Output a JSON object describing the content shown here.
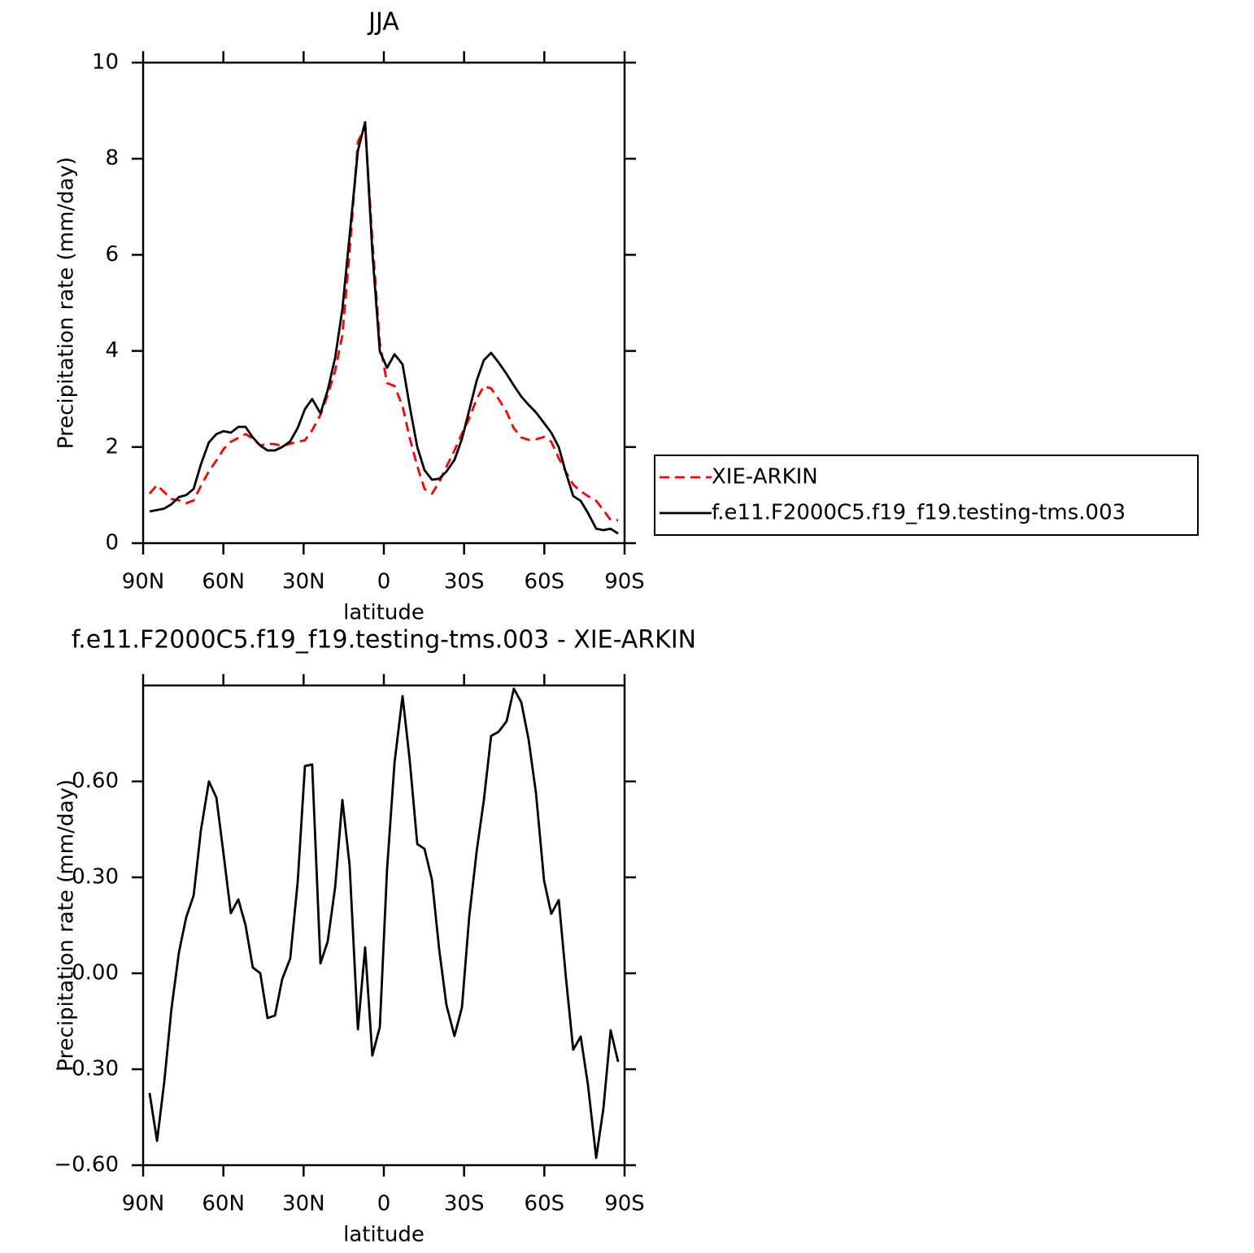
{
  "chart_data": [
    {
      "type": "line",
      "title": "JJA",
      "xlabel": "latitude",
      "ylabel": "Precipitation rate (mm/day)",
      "x": [
        87.6,
        84.8,
        82.1,
        79.4,
        76.6,
        73.9,
        71.1,
        68.4,
        65.4,
        62.6,
        59.9,
        57.2,
        54.4,
        51.7,
        49.0,
        46.2,
        43.5,
        40.7,
        38.0,
        35.0,
        32.2,
        29.5,
        26.8,
        23.7,
        21.0,
        18.2,
        15.5,
        12.8,
        9.7,
        7.0,
        4.3,
        1.5,
        -1.2,
        -4.0,
        -7.0,
        -9.7,
        -12.5,
        -15.2,
        -18.0,
        -20.7,
        -23.4,
        -26.4,
        -29.2,
        -31.9,
        -34.7,
        -37.4,
        -40.1,
        -42.9,
        -45.9,
        -48.6,
        -51.4,
        -54.1,
        -56.9,
        -59.9,
        -62.6,
        -65.4,
        -68.1,
        -70.8,
        -73.6,
        -76.3,
        -79.4,
        -82.1,
        -84.8,
        -87.6
      ],
      "series": [
        {
          "name": "XIE-ARKIN",
          "color": "#ff0000",
          "dash": "dashed",
          "values": [
            1.03,
            1.21,
            1.06,
            0.92,
            0.89,
            0.83,
            0.89,
            1.19,
            1.5,
            1.72,
            1.96,
            2.11,
            2.19,
            2.27,
            2.18,
            2.03,
            2.07,
            2.06,
            2.02,
            2.07,
            2.11,
            2.14,
            2.35,
            2.67,
            3.08,
            3.59,
            4.33,
            6.06,
            8.35,
            8.68,
            6.32,
            4.16,
            3.33,
            3.27,
            2.85,
            2.18,
            1.6,
            1.13,
            1.03,
            1.27,
            1.59,
            1.93,
            2.28,
            2.59,
            3.0,
            3.27,
            3.22,
            3.0,
            2.73,
            2.39,
            2.2,
            2.15,
            2.16,
            2.21,
            2.11,
            1.77,
            1.48,
            1.22,
            1.08,
            0.98,
            0.88,
            0.69,
            0.48,
            0.48
          ]
        },
        {
          "name": "f.e11.F2000C5.f19_f19.testing-tms.003",
          "color": "#000000",
          "dash": "solid",
          "values": [
            0.66,
            0.69,
            0.72,
            0.81,
            0.96,
            1.0,
            1.13,
            1.64,
            2.1,
            2.27,
            2.33,
            2.3,
            2.42,
            2.42,
            2.2,
            2.03,
            1.93,
            1.93,
            2.0,
            2.12,
            2.4,
            2.79,
            3.0,
            2.7,
            3.18,
            3.86,
            4.87,
            6.4,
            8.17,
            8.76,
            6.06,
            3.99,
            3.65,
            3.93,
            3.72,
            2.84,
            2.0,
            1.52,
            1.32,
            1.34,
            1.49,
            1.73,
            2.17,
            2.76,
            3.38,
            3.81,
            3.96,
            3.76,
            3.52,
            3.28,
            3.05,
            2.88,
            2.72,
            2.5,
            2.3,
            2.0,
            1.46,
            0.98,
            0.88,
            0.63,
            0.3,
            0.27,
            0.3,
            0.2
          ]
        }
      ],
      "xlim": [
        90,
        -90
      ],
      "xticks": [
        {
          "value": 90,
          "label": "90N"
        },
        {
          "value": 60,
          "label": "60N"
        },
        {
          "value": 30,
          "label": "30N"
        },
        0,
        {
          "value": -30,
          "label": "30S"
        },
        {
          "value": -60,
          "label": "60S"
        },
        {
          "value": -90,
          "label": "90S"
        }
      ],
      "ylim": [
        0,
        10
      ],
      "yticks": [
        0,
        2,
        4,
        6,
        8,
        10
      ],
      "legend": "right"
    },
    {
      "type": "line",
      "title": "f.e11.F2000C5.f19_f19.testing-tms.003 - XIE-ARKIN",
      "xlabel": "latitude",
      "ylabel": "Precipitation rate (mm/day)",
      "x": [
        87.6,
        84.8,
        82.1,
        79.4,
        76.6,
        73.9,
        71.1,
        68.4,
        65.4,
        62.6,
        59.9,
        57.2,
        54.4,
        51.7,
        49.0,
        46.2,
        43.5,
        40.7,
        38.0,
        35.0,
        32.2,
        29.5,
        26.8,
        23.7,
        21.0,
        18.2,
        15.5,
        12.8,
        9.7,
        7.0,
        4.3,
        1.5,
        -1.2,
        -4.0,
        -7.0,
        -9.7,
        -12.5,
        -15.2,
        -18.0,
        -20.7,
        -23.4,
        -26.4,
        -29.2,
        -31.9,
        -34.7,
        -37.4,
        -40.1,
        -42.9,
        -45.9,
        -48.6,
        -51.4,
        -54.1,
        -56.9,
        -59.9,
        -62.6,
        -65.4,
        -68.1,
        -70.8,
        -73.6,
        -76.3,
        -79.4,
        -82.1,
        -84.8,
        -87.6
      ],
      "color": "#000000",
      "values": [
        -0.374,
        -0.524,
        -0.34,
        -0.11,
        0.066,
        0.175,
        0.244,
        0.447,
        0.6,
        0.549,
        0.371,
        0.188,
        0.231,
        0.15,
        0.018,
        0.0,
        -0.14,
        -0.132,
        -0.018,
        0.046,
        0.287,
        0.648,
        0.653,
        0.031,
        0.099,
        0.27,
        0.542,
        0.338,
        -0.175,
        0.081,
        -0.257,
        -0.168,
        0.325,
        0.659,
        0.867,
        0.664,
        0.404,
        0.389,
        0.292,
        0.074,
        -0.099,
        -0.196,
        -0.107,
        0.175,
        0.381,
        0.542,
        0.742,
        0.755,
        0.788,
        0.89,
        0.847,
        0.732,
        0.562,
        0.29,
        0.186,
        0.229,
        -0.015,
        -0.239,
        -0.198,
        -0.348,
        -0.577,
        -0.422,
        -0.178,
        -0.277
      ],
      "xlim": [
        90,
        -90
      ],
      "xticks": [
        {
          "value": 90,
          "label": "90N"
        },
        {
          "value": 60,
          "label": "60N"
        },
        {
          "value": 30,
          "label": "30N"
        },
        0,
        {
          "value": -30,
          "label": "30S"
        },
        {
          "value": -60,
          "label": "60S"
        },
        {
          "value": -90,
          "label": "90S"
        }
      ],
      "ylim": [
        -0.6,
        0.9
      ],
      "yticks": [
        {
          "value": -0.6,
          "label": "−0.60"
        },
        {
          "value": -0.3,
          "label": "−0.30"
        },
        {
          "value": 0,
          "label": "0.00"
        },
        {
          "value": 0.3,
          "label": "0.30"
        },
        {
          "value": 0.6,
          "label": "0.60"
        }
      ]
    }
  ]
}
